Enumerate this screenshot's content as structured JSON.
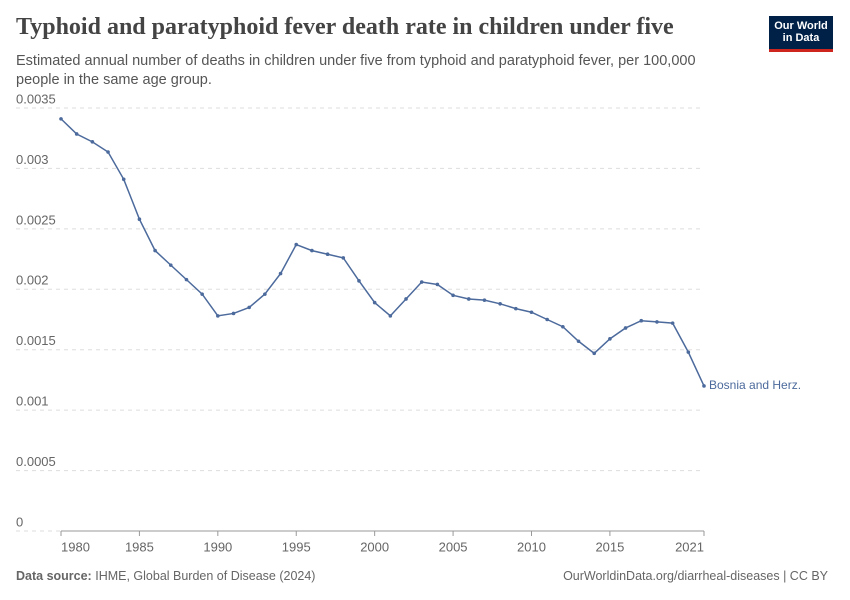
{
  "chart_data": {
    "type": "line",
    "title": "Typhoid and paratyphoid fever death rate in children under five",
    "subtitle": "Estimated annual number of deaths in children under five from typhoid and paratyphoid fever, per 100,000 people in the same age group.",
    "logo": [
      "Our World",
      "in Data"
    ],
    "source_label": "Data source:",
    "source": "IHME, Global Burden of Disease (2024)",
    "url": "OurWorldinData.org/diarrheal-diseases | CC BY",
    "x": [
      1980,
      1981,
      1982,
      1983,
      1984,
      1985,
      1986,
      1987,
      1988,
      1989,
      1990,
      1991,
      1992,
      1993,
      1994,
      1995,
      1996,
      1997,
      1998,
      1999,
      2000,
      2001,
      2002,
      2003,
      2004,
      2005,
      2006,
      2007,
      2008,
      2009,
      2010,
      2011,
      2012,
      2013,
      2014,
      2015,
      2016,
      2017,
      2018,
      2019,
      2020,
      2021
    ],
    "series": [
      {
        "name": "Bosnia and Herz.",
        "color": "#4c6a9c",
        "values": [
          0.00341,
          0.003285,
          0.00322,
          0.003136,
          0.00291,
          0.00258,
          0.00232,
          0.0022,
          0.00208,
          0.00196,
          0.00178,
          0.0018,
          0.00185,
          0.00196,
          0.00213,
          0.00237,
          0.00232,
          0.00229,
          0.00226,
          0.00207,
          0.00189,
          0.00178,
          0.00192,
          0.00206,
          0.00204,
          0.00195,
          0.00192,
          0.00191,
          0.00188,
          0.00184,
          0.00181,
          0.00175,
          0.00169,
          0.00157,
          0.00147,
          0.00159,
          0.00168,
          0.00174,
          0.00173,
          0.00172,
          0.00148,
          0.0012
        ]
      }
    ],
    "xlim": [
      1980,
      2021
    ],
    "xticks": [
      1980,
      1985,
      1990,
      1995,
      2000,
      2005,
      2010,
      2015,
      2021
    ],
    "ylim": [
      0,
      0.0035
    ],
    "yticks": [
      0,
      0.0005,
      0.001,
      0.0015,
      0.002,
      0.0025,
      0.003,
      0.0035
    ],
    "grid": true
  }
}
